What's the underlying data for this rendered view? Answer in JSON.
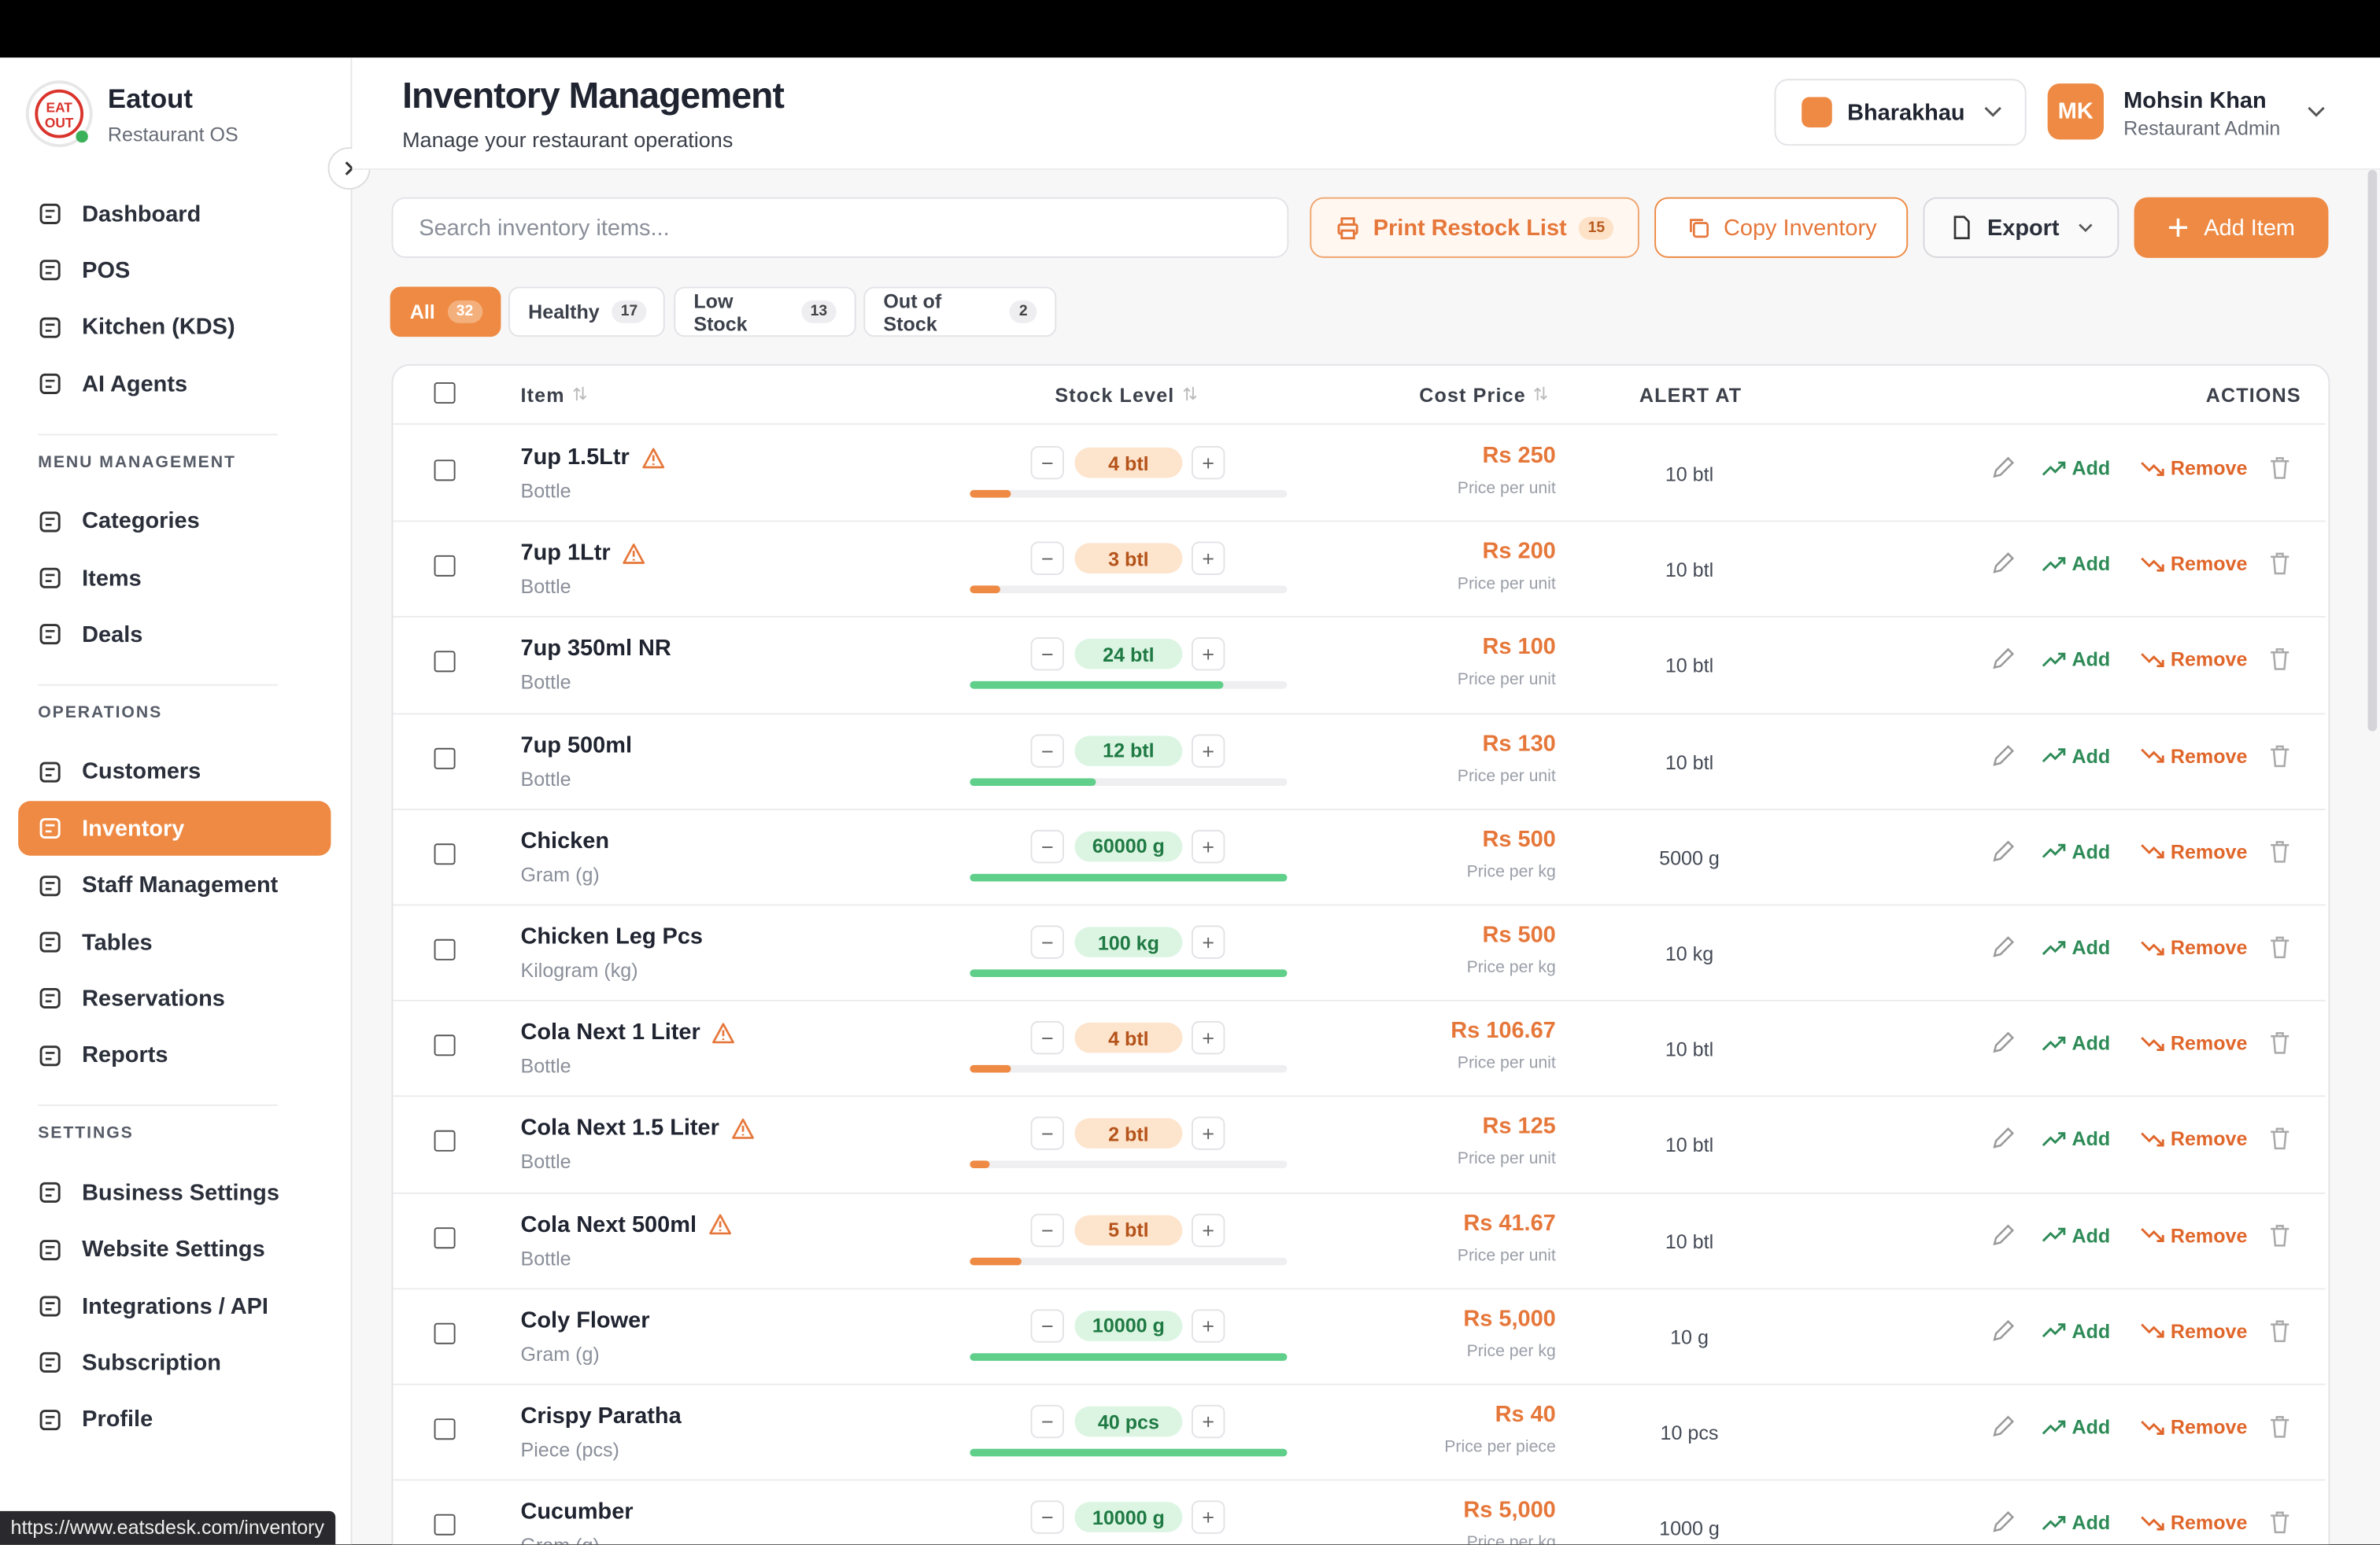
{
  "browser": {
    "status_url": "https://www.eatsdesk.com/inventory"
  },
  "sidebar": {
    "brand": "Eatout",
    "tagline": "Restaurant OS",
    "nav": [
      "Dashboard",
      "POS",
      "Kitchen (KDS)",
      "AI Agents"
    ],
    "sections": [
      {
        "title": "MENU MANAGEMENT",
        "items": [
          "Categories",
          "Items",
          "Deals"
        ]
      },
      {
        "title": "OPERATIONS",
        "items": [
          "Customers",
          "Inventory",
          "Staff Management",
          "Tables",
          "Reservations",
          "Reports"
        ],
        "active": 1
      },
      {
        "title": "SETTINGS",
        "items": [
          "Business Settings",
          "Website Settings",
          "Integrations / API",
          "Subscription",
          "Profile"
        ]
      }
    ]
  },
  "header": {
    "title": "Inventory Management",
    "subtitle": "Manage your restaurant operations",
    "location": "Bharakhau",
    "user": {
      "initials": "MK",
      "name": "Mohsin Khan",
      "role": "Restaurant Admin"
    }
  },
  "toolbar": {
    "search_placeholder": "Search inventory items...",
    "print": {
      "label": "Print Restock List",
      "count": 15
    },
    "copy": "Copy Inventory",
    "export": "Export",
    "add": "Add Item"
  },
  "filters": [
    {
      "label": "All",
      "count": 32
    },
    {
      "label": "Healthy",
      "count": 17
    },
    {
      "label": "Low Stock",
      "count": 13
    },
    {
      "label": "Out of Stock",
      "count": 2
    }
  ],
  "table": {
    "columns": [
      "Item",
      "Stock Level",
      "Cost Price",
      "ALERT AT",
      "ACTIONS"
    ],
    "actions": [
      "Add",
      "Remove"
    ],
    "rows": [
      {
        "name": "7up 1.5Ltr",
        "unit": "Bottle",
        "stock": "4 btl",
        "price": "Rs 250",
        "price_note": "Price per unit",
        "alert": "10 btl",
        "low": true
      },
      {
        "name": "7up 1Ltr",
        "unit": "Bottle",
        "stock": "3 btl",
        "price": "Rs 200",
        "price_note": "Price per unit",
        "alert": "10 btl",
        "low": true
      },
      {
        "name": "7up 350ml NR",
        "unit": "Bottle",
        "stock": "24 btl",
        "price": "Rs 100",
        "price_note": "Price per unit",
        "alert": "10 btl",
        "low": false
      },
      {
        "name": "7up 500ml",
        "unit": "Bottle",
        "stock": "12 btl",
        "price": "Rs 130",
        "price_note": "Price per unit",
        "alert": "10 btl",
        "low": false
      },
      {
        "name": "Chicken",
        "unit": "Gram (g)",
        "stock": "60000 g",
        "price": "Rs 500",
        "price_note": "Price per kg",
        "alert": "5000 g",
        "low": false
      },
      {
        "name": "Chicken Leg Pcs",
        "unit": "Kilogram (kg)",
        "stock": "100 kg",
        "price": "Rs 500",
        "price_note": "Price per kg",
        "alert": "10 kg",
        "low": false
      },
      {
        "name": "Cola Next 1 Liter",
        "unit": "Bottle",
        "stock": "4 btl",
        "price": "Rs 106.67",
        "price_note": "Price per unit",
        "alert": "10 btl",
        "low": true
      },
      {
        "name": "Cola Next 1.5 Liter",
        "unit": "Bottle",
        "stock": "2 btl",
        "price": "Rs 125",
        "price_note": "Price per unit",
        "alert": "10 btl",
        "low": true
      },
      {
        "name": "Cola Next 500ml",
        "unit": "Bottle",
        "stock": "5 btl",
        "price": "Rs 41.67",
        "price_note": "Price per unit",
        "alert": "10 btl",
        "low": true
      },
      {
        "name": "Coly Flower",
        "unit": "Gram (g)",
        "stock": "10000 g",
        "price": "Rs 5,000",
        "price_note": "Price per kg",
        "alert": "10 g",
        "low": false
      },
      {
        "name": "Crispy Paratha",
        "unit": "Piece (pcs)",
        "stock": "40 pcs",
        "price": "Rs 40",
        "price_note": "Price per piece",
        "alert": "10 pcs",
        "low": false
      },
      {
        "name": "Cucumber",
        "unit": "Gram (g)",
        "stock": "10000 g",
        "price": "Rs 5,000",
        "price_note": "Price per kg",
        "alert": "1000 g",
        "low": false
      }
    ]
  }
}
